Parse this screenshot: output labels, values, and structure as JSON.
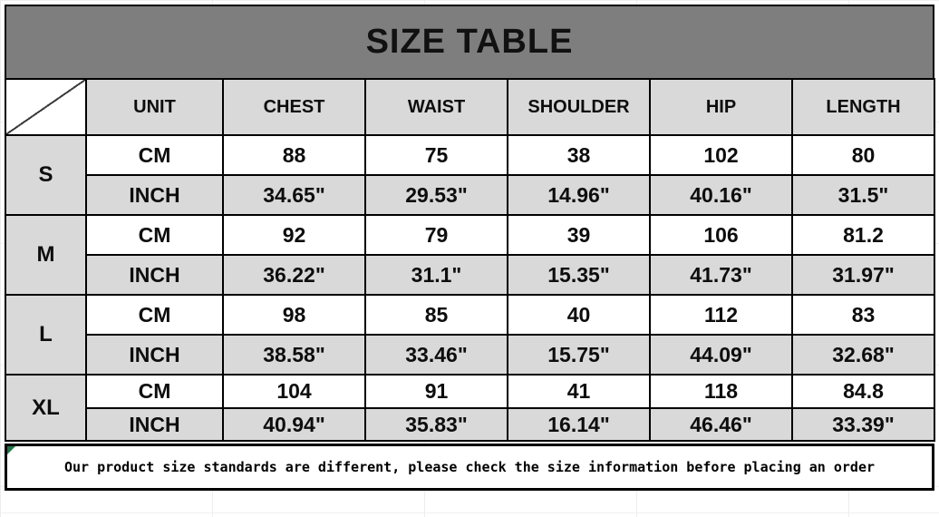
{
  "chart_data": {
    "type": "table",
    "title": "SIZE TABLE",
    "header": {
      "corner": "",
      "columns": [
        "UNIT",
        "CHEST",
        "WAIST",
        "SHOULDER",
        "HIP",
        "LENGTH"
      ]
    },
    "unit_labels": {
      "cm": "CM",
      "inch": "INCH"
    },
    "rows": [
      {
        "size": "S",
        "cm": [
          "88",
          "75",
          "38",
          "102",
          "80"
        ],
        "inch": [
          "34.65\"",
          "29.53\"",
          "14.96\"",
          "40.16\"",
          "31.5\""
        ]
      },
      {
        "size": "M",
        "cm": [
          "92",
          "79",
          "39",
          "106",
          "81.2"
        ],
        "inch": [
          "36.22\"",
          "31.1\"",
          "15.35\"",
          "41.73\"",
          "31.97\""
        ]
      },
      {
        "size": "L",
        "cm": [
          "98",
          "85",
          "40",
          "112",
          "83"
        ],
        "inch": [
          "38.58\"",
          "33.46\"",
          "15.75\"",
          "44.09\"",
          "32.68\""
        ]
      },
      {
        "size": "XL",
        "cm": [
          "104",
          "91",
          "41",
          "118",
          "84.8"
        ],
        "inch": [
          "40.94\"",
          "35.83\"",
          "16.14\"",
          "46.46\"",
          "33.39\""
        ]
      }
    ]
  },
  "footer": {
    "note": "Our product size standards are different, please check the size information before placing an order"
  },
  "colors": {
    "banner_gray": "#7e7e7e",
    "cell_gray": "#d9d9d9",
    "border_black": "#000000",
    "corner_flag_green": "#217346"
  }
}
